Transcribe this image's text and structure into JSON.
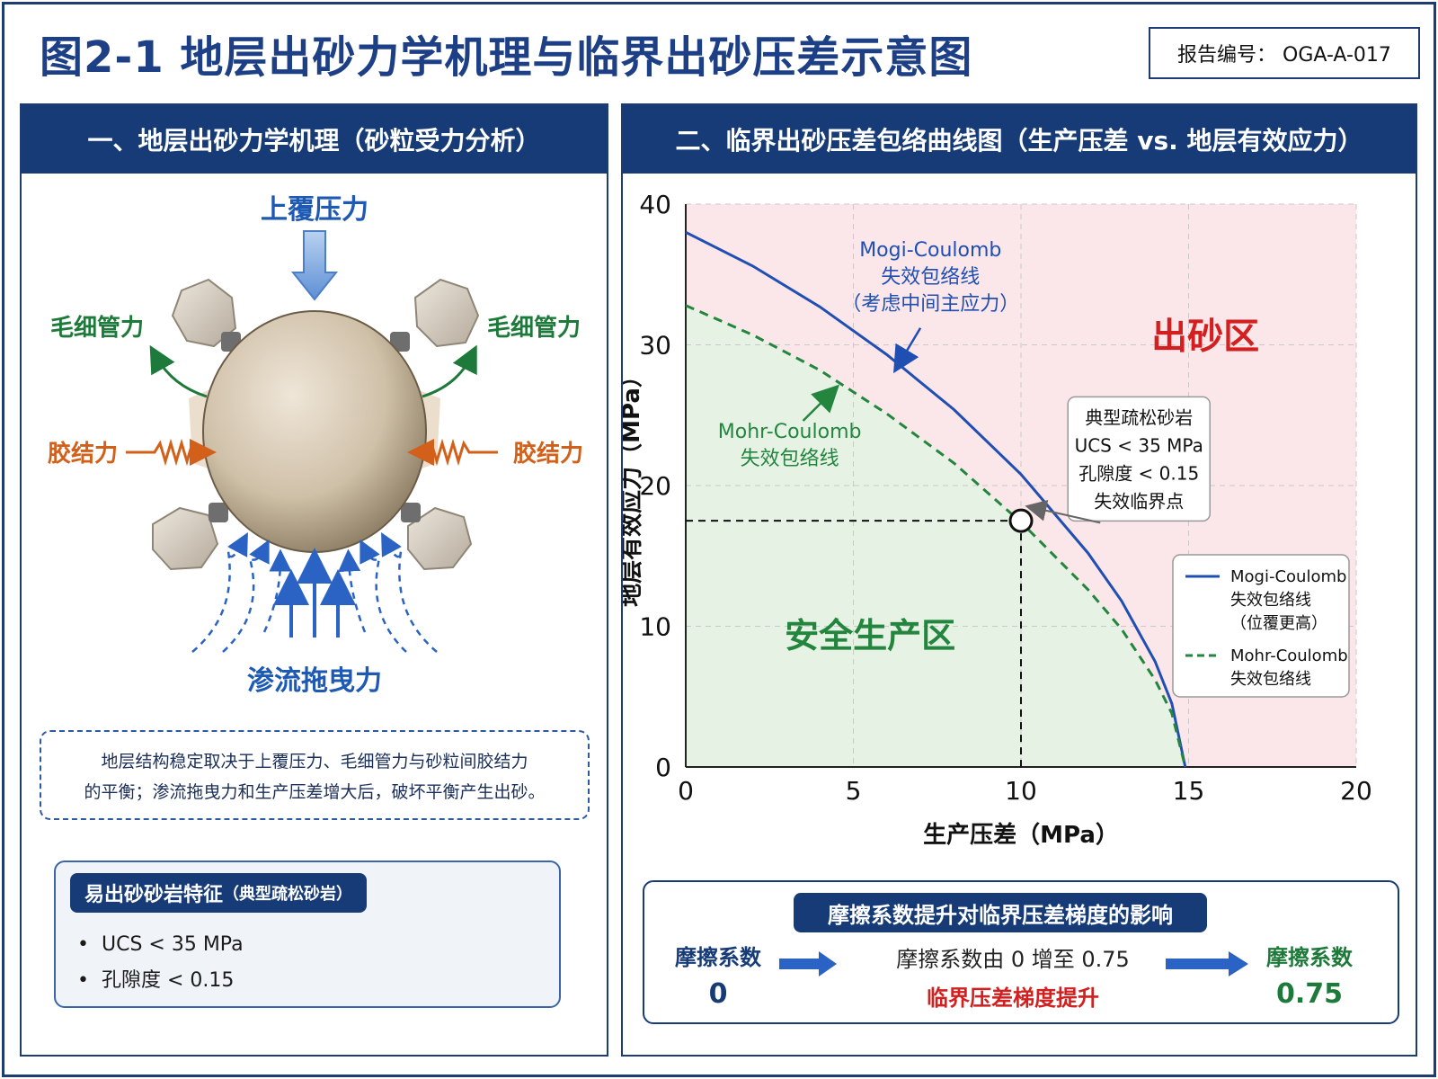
{
  "header": {
    "title": "图2-1  地层出砂力学机理与临界出砂压差示意图",
    "report_no": "报告编号：  OGA-A-017"
  },
  "left_panel": {
    "heading": "一、地层出砂力学机理（砂粒受力分析）",
    "forces": {
      "overburden": "上覆压力",
      "capillary_left": "毛细管力",
      "capillary_right": "毛细管力",
      "cement_left": "胶结力",
      "cement_right": "胶结力",
      "seepage_drag": "渗流拖曳力"
    },
    "note_line1": "地层结构稳定取决于上覆压力、毛细管力与砂粒间胶结力",
    "note_line2": "的平衡；渗流拖曳力和生产压差增大后，破坏平衡产生出砂。",
    "features": {
      "title": "易出砂砂岩特征",
      "title_sub": "（典型疏松砂岩）",
      "items": [
        "UCS < 35 MPa",
        "孔隙度 < 0.15"
      ]
    }
  },
  "right_panel": {
    "heading": "二、临界出砂压差包络曲线图（生产压差 vs. 地层有效应力）",
    "friction": {
      "title": "摩擦系数提升对临界压差梯度的影响",
      "left_label": "摩擦系数",
      "left_value": "0",
      "desc": "摩擦系数由 0 增至 0.75",
      "effect": "临界压差梯度提升",
      "right_label": "摩擦系数",
      "right_value": "0.75"
    }
  },
  "colors": {
    "navy": "#163b77",
    "mogi_blue": "#1f4fb3",
    "mohr_green": "#23853e",
    "sand_zone": "#fbe6ea",
    "safe_zone": "#e6f3e4",
    "red_text": "#d21f1f"
  },
  "chart_data": {
    "type": "line",
    "xlabel": "生产压差（MPa）",
    "ylabel": "地层有效应力（MPa）",
    "xlim": [
      0,
      20
    ],
    "ylim": [
      0,
      40
    ],
    "xticks": [
      0,
      5,
      10,
      15,
      20
    ],
    "yticks": [
      0,
      10,
      20,
      30,
      40
    ],
    "grid": true,
    "series": [
      {
        "name": "Mogi-Coulomb 失效包络线",
        "style": "solid",
        "color": "#1f4fb3",
        "x": [
          0,
          2,
          4,
          6,
          8,
          10,
          12,
          13,
          14,
          14.5,
          14.9
        ],
        "y": [
          38,
          35.6,
          32.7,
          29.3,
          25.4,
          20.8,
          15.2,
          11.8,
          7.5,
          4.5,
          0
        ]
      },
      {
        "name": "Mohr-Coulomb 失效包络线",
        "style": "dashed",
        "color": "#23853e",
        "x": [
          0,
          2,
          4,
          6,
          8,
          10,
          12,
          13,
          14,
          14.5,
          14.9
        ],
        "y": [
          32.8,
          30.7,
          28.2,
          25.1,
          21.6,
          17.4,
          12.6,
          9.8,
          6.2,
          3.8,
          0
        ]
      }
    ],
    "critical_point": {
      "x": 10,
      "y": 17.5
    },
    "zones": {
      "sand": "出砂区",
      "safe": "安全生产区"
    },
    "annotations": {
      "mogi_label": [
        "Mogi-Coulomb",
        "失效包络线",
        "（考虑中间主应力）"
      ],
      "mohr_label": [
        "Mohr-Coulomb",
        "失效包络线"
      ],
      "critical_label": [
        "典型疏松砂岩",
        "UCS < 35 MPa",
        "孔隙度 < 0.15",
        "失效临界点"
      ]
    },
    "legend": {
      "position": "right",
      "mogi": [
        "Mogi-Coulomb",
        "失效包络线",
        "（位覆更高）"
      ],
      "mohr": [
        "Mohr-Coulomb",
        "失效包络线"
      ]
    }
  }
}
